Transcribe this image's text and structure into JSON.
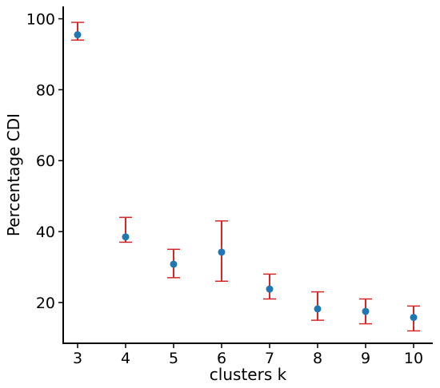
{
  "chart_data": {
    "type": "scatter",
    "xlabel": "clusters k",
    "ylabel": "Percentage CDI",
    "x_ticks": [
      "3",
      "4",
      "5",
      "6",
      "7",
      "8",
      "9",
      "10"
    ],
    "y_ticks": [
      "20",
      "40",
      "60",
      "80",
      "100"
    ],
    "xlim": [
      2.7,
      10.4
    ],
    "ylim": [
      8.5,
      103.5
    ],
    "grid": false,
    "series": [
      {
        "x": [
          3,
          4,
          5,
          6,
          7,
          8,
          9,
          10
        ],
        "y": [
          95.5,
          38.5,
          30.8,
          34.2,
          23.8,
          18.2,
          17.5,
          15.8
        ],
        "err_low": [
          94,
          37,
          27,
          26,
          21,
          15,
          14,
          12
        ],
        "err_high": [
          99,
          44,
          35,
          43,
          28,
          23,
          21,
          19
        ]
      }
    ],
    "colors": {
      "marker": "#1f77b4",
      "error_bar": "#d62728",
      "axis": "#000000"
    }
  }
}
